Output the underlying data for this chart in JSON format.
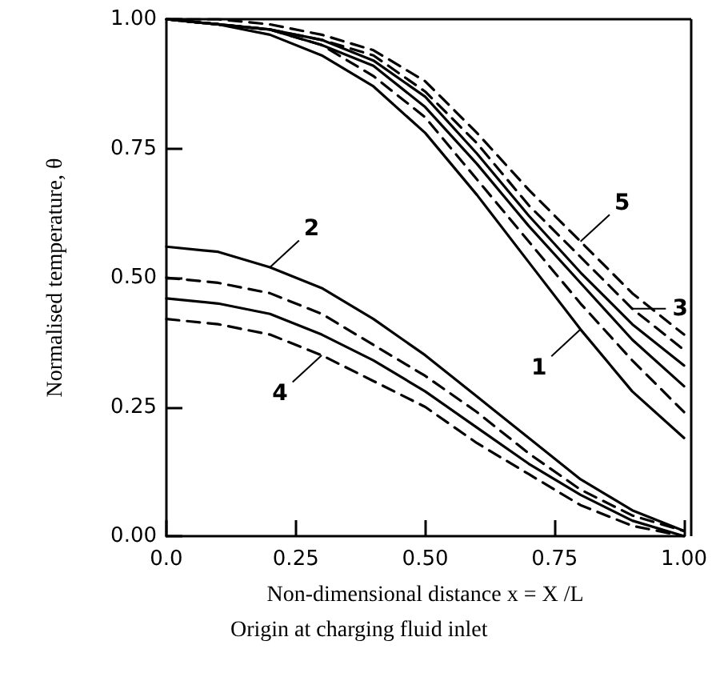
{
  "chart_data": {
    "type": "line",
    "xlabel": "Non-dimensional distance x = X /L",
    "ylabel": "Normalised temperature, θ",
    "x": [
      0,
      0.1,
      0.2,
      0.3,
      0.4,
      0.5,
      0.6,
      0.7,
      0.8,
      0.9,
      1.0
    ],
    "series": [
      {
        "color": "#000000",
        "line_style": "solid",
        "values": [
          1.0,
          0.99,
          0.97,
          0.93,
          0.87,
          0.78,
          0.66,
          0.53,
          0.4,
          0.28,
          0.19
        ]
      },
      {
        "color": "#000000",
        "line_style": "dashed",
        "values": [
          1.0,
          0.99,
          0.98,
          0.95,
          0.89,
          0.81,
          0.69,
          0.57,
          0.45,
          0.34,
          0.24
        ]
      },
      {
        "color": "#000000",
        "line_style": "solid",
        "values": [
          1.0,
          0.99,
          0.98,
          0.95,
          0.91,
          0.83,
          0.72,
          0.6,
          0.49,
          0.38,
          0.29
        ]
      },
      {
        "color": "#000000",
        "line_style": "solid",
        "values": [
          1.0,
          0.99,
          0.98,
          0.96,
          0.92,
          0.85,
          0.74,
          0.62,
          0.51,
          0.41,
          0.33
        ]
      },
      {
        "color": "#000000",
        "line_style": "dashed",
        "values": [
          1.0,
          0.99,
          0.98,
          0.96,
          0.93,
          0.86,
          0.76,
          0.64,
          0.54,
          0.44,
          0.36
        ]
      },
      {
        "color": "#000000",
        "line_style": "dashed",
        "values": [
          1.0,
          1.0,
          0.99,
          0.97,
          0.94,
          0.88,
          0.78,
          0.67,
          0.57,
          0.47,
          0.39
        ]
      },
      {
        "color": "#000000",
        "line_style": "solid",
        "values": [
          0.56,
          0.55,
          0.52,
          0.48,
          0.42,
          0.35,
          0.27,
          0.19,
          0.11,
          0.05,
          0.01
        ]
      },
      {
        "color": "#000000",
        "line_style": "dashed",
        "values": [
          0.5,
          0.49,
          0.47,
          0.43,
          0.37,
          0.31,
          0.24,
          0.16,
          0.09,
          0.04,
          0.01
        ]
      },
      {
        "color": "#000000",
        "line_style": "solid",
        "values": [
          0.46,
          0.45,
          0.43,
          0.39,
          0.34,
          0.28,
          0.21,
          0.14,
          0.08,
          0.03,
          0.0
        ]
      },
      {
        "color": "#000000",
        "line_style": "dashed",
        "values": [
          0.42,
          0.41,
          0.39,
          0.35,
          0.3,
          0.25,
          0.18,
          0.12,
          0.06,
          0.02,
          0.0
        ]
      }
    ],
    "annotations": [
      {
        "text": "5",
        "x": 0.8,
        "y": 0.57
      },
      {
        "text": "3",
        "x": 0.9,
        "y": 0.44
      },
      {
        "text": "1",
        "x": 0.8,
        "y": 0.4
      },
      {
        "text": "2",
        "x": 0.2,
        "y": 0.52
      },
      {
        "text": "4",
        "x": 0.3,
        "y": 0.35
      },
      "Origin at charging fluid inlet"
    ],
    "xlim": [
      0,
      1
    ],
    "ylim": [
      0,
      1
    ],
    "xticks": [
      {
        "value": 0,
        "label": "0.0"
      },
      0.25,
      {
        "value": 0.5,
        "label": "0.50"
      },
      0.75,
      {
        "value": 1,
        "label": "1.00"
      }
    ],
    "yticks": [
      {
        "value": 0,
        "label": "0.00"
      },
      0.25,
      {
        "value": 0.5,
        "label": "0.50"
      },
      0.75,
      {
        "value": 1,
        "label": "1.00"
      }
    ],
    "grid": false,
    "marker": "none"
  }
}
